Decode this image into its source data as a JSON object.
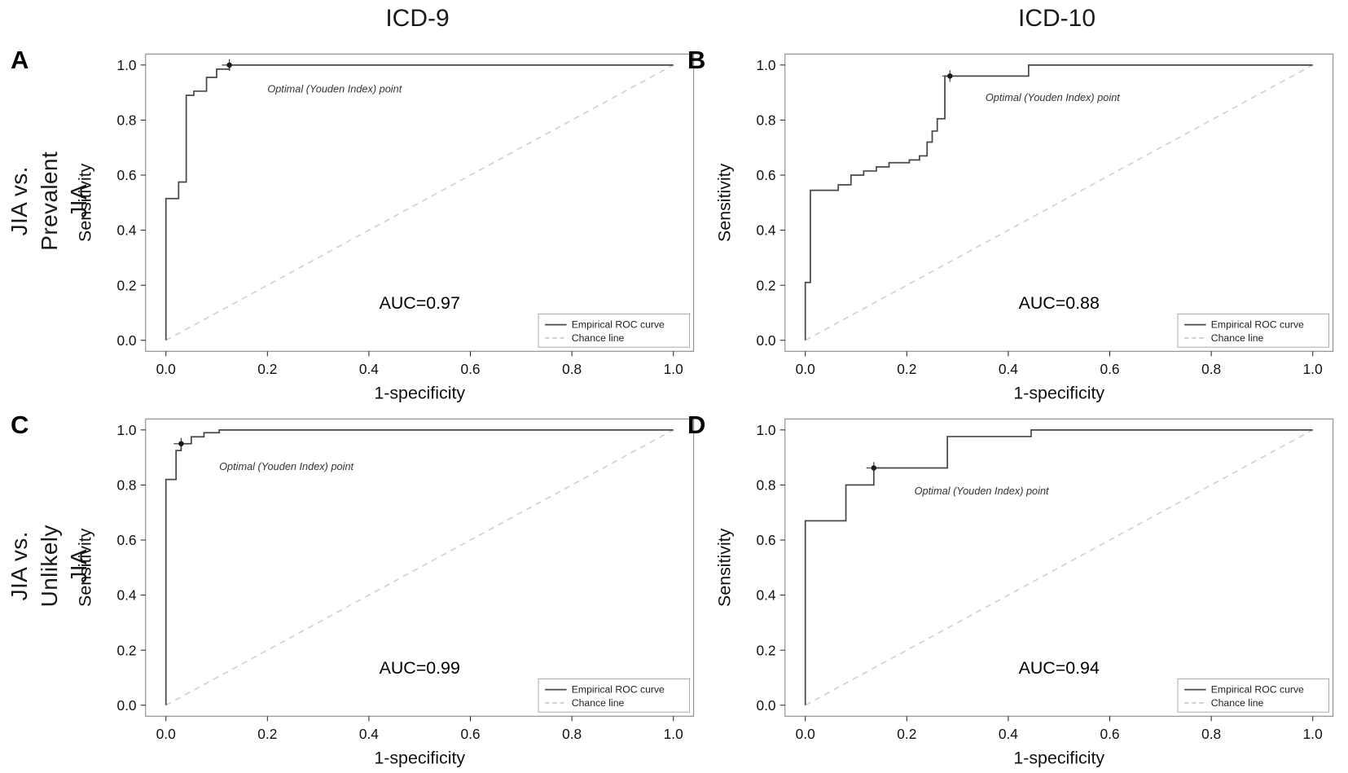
{
  "figure": {
    "columns": [
      {
        "title": "ICD-9"
      },
      {
        "title": "ICD-10"
      }
    ],
    "rows": [
      {
        "label": "Incident JIA vs.\nPrevalent JIA"
      },
      {
        "label": "Incident JIA vs.\nUnlikely JIA"
      }
    ]
  },
  "colors": {
    "roc_curve": "#44494a",
    "chance_line": "#d0d0d0",
    "plot_border": "#808080",
    "marker": "#1a1a1a"
  },
  "chart_data": [
    {
      "type": "line",
      "panel": "A",
      "group": "ICD-9",
      "comparison": "Incident JIA vs. Prevalent JIA",
      "xlabel": "1-specificity",
      "ylabel": "Sensitivity",
      "xlim": [
        0,
        1
      ],
      "ylim": [
        0,
        1
      ],
      "xticks": [
        0,
        0.2,
        0.4,
        0.6,
        0.8,
        1.0
      ],
      "yticks": [
        0,
        0.2,
        0.4,
        0.6,
        0.8,
        1.0
      ],
      "auc": 0.97,
      "auc_label": "AUC=0.97",
      "auc_pos": [
        0.5,
        0.115
      ],
      "annotation": "Optimal (Youden Index) point",
      "annotation_pos": [
        0.2,
        0.9
      ],
      "optimal_point": [
        0.125,
        1.0
      ],
      "legend": [
        "Empirical ROC curve",
        "Chance line"
      ],
      "roc_points": [
        [
          0,
          0
        ],
        [
          0,
          0.515
        ],
        [
          0.025,
          0.515
        ],
        [
          0.025,
          0.575
        ],
        [
          0.04,
          0.575
        ],
        [
          0.04,
          0.89
        ],
        [
          0.055,
          0.89
        ],
        [
          0.055,
          0.905
        ],
        [
          0.08,
          0.905
        ],
        [
          0.08,
          0.955
        ],
        [
          0.1,
          0.955
        ],
        [
          0.1,
          0.985
        ],
        [
          0.125,
          0.985
        ],
        [
          0.125,
          1.0
        ],
        [
          1,
          1
        ]
      ],
      "chance_line": [
        [
          0,
          0
        ],
        [
          1,
          1
        ]
      ]
    },
    {
      "type": "line",
      "panel": "B",
      "group": "ICD-10",
      "comparison": "Incident JIA vs. Prevalent JIA",
      "xlabel": "1-specificity",
      "ylabel": "Sensitivity",
      "xlim": [
        0,
        1
      ],
      "ylim": [
        0,
        1
      ],
      "xticks": [
        0,
        0.2,
        0.4,
        0.6,
        0.8,
        1.0
      ],
      "yticks": [
        0,
        0.2,
        0.4,
        0.6,
        0.8,
        1.0
      ],
      "auc": 0.88,
      "auc_label": "AUC=0.88",
      "auc_pos": [
        0.5,
        0.115
      ],
      "annotation": "Optimal (Youden Index) point",
      "annotation_pos": [
        0.355,
        0.87
      ],
      "optimal_point": [
        0.285,
        0.96
      ],
      "legend": [
        "Empirical ROC curve",
        "Chance line"
      ],
      "roc_points": [
        [
          0,
          0
        ],
        [
          0,
          0.21
        ],
        [
          0.01,
          0.21
        ],
        [
          0.01,
          0.545
        ],
        [
          0.065,
          0.545
        ],
        [
          0.065,
          0.565
        ],
        [
          0.09,
          0.565
        ],
        [
          0.09,
          0.6
        ],
        [
          0.115,
          0.6
        ],
        [
          0.115,
          0.615
        ],
        [
          0.14,
          0.615
        ],
        [
          0.14,
          0.63
        ],
        [
          0.165,
          0.63
        ],
        [
          0.165,
          0.645
        ],
        [
          0.205,
          0.645
        ],
        [
          0.205,
          0.655
        ],
        [
          0.225,
          0.655
        ],
        [
          0.225,
          0.67
        ],
        [
          0.24,
          0.67
        ],
        [
          0.24,
          0.72
        ],
        [
          0.25,
          0.72
        ],
        [
          0.25,
          0.76
        ],
        [
          0.26,
          0.76
        ],
        [
          0.26,
          0.805
        ],
        [
          0.275,
          0.805
        ],
        [
          0.275,
          0.96
        ],
        [
          0.285,
          0.96
        ],
        [
          0.44,
          0.96
        ],
        [
          0.44,
          1.0
        ],
        [
          1,
          1
        ]
      ],
      "chance_line": [
        [
          0,
          0
        ],
        [
          1,
          1
        ]
      ]
    },
    {
      "type": "line",
      "panel": "C",
      "group": "ICD-9",
      "comparison": "Incident JIA vs. Unlikely JIA",
      "xlabel": "1-specificity",
      "ylabel": "Sensitivity",
      "xlim": [
        0,
        1
      ],
      "ylim": [
        0,
        1
      ],
      "xticks": [
        0,
        0.2,
        0.4,
        0.6,
        0.8,
        1.0
      ],
      "yticks": [
        0,
        0.2,
        0.4,
        0.6,
        0.8,
        1.0
      ],
      "auc": 0.99,
      "auc_label": "AUC=0.99",
      "auc_pos": [
        0.5,
        0.115
      ],
      "annotation": "Optimal (Youden Index) point",
      "annotation_pos": [
        0.105,
        0.855
      ],
      "optimal_point": [
        0.03,
        0.95
      ],
      "legend": [
        "Empirical ROC curve",
        "Chance line"
      ],
      "roc_points": [
        [
          0,
          0
        ],
        [
          0,
          0.82
        ],
        [
          0.02,
          0.82
        ],
        [
          0.02,
          0.925
        ],
        [
          0.03,
          0.925
        ],
        [
          0.03,
          0.95
        ],
        [
          0.05,
          0.95
        ],
        [
          0.05,
          0.975
        ],
        [
          0.075,
          0.975
        ],
        [
          0.075,
          0.99
        ],
        [
          0.105,
          0.99
        ],
        [
          0.105,
          1.0
        ],
        [
          1,
          1
        ]
      ],
      "chance_line": [
        [
          0,
          0
        ],
        [
          1,
          1
        ]
      ]
    },
    {
      "type": "line",
      "panel": "D",
      "group": "ICD-10",
      "comparison": "Incident JIA vs. Unlikely JIA",
      "xlabel": "1-specificity",
      "ylabel": "Sensitivity",
      "xlim": [
        0,
        1
      ],
      "ylim": [
        0,
        1
      ],
      "xticks": [
        0,
        0.2,
        0.4,
        0.6,
        0.8,
        1.0
      ],
      "yticks": [
        0,
        0.2,
        0.4,
        0.6,
        0.8,
        1.0
      ],
      "auc": 0.94,
      "auc_label": "AUC=0.94",
      "auc_pos": [
        0.5,
        0.115
      ],
      "annotation": "Optimal (Youden Index) point",
      "annotation_pos": [
        0.215,
        0.765
      ],
      "optimal_point": [
        0.135,
        0.862
      ],
      "legend": [
        "Empirical ROC curve",
        "Chance line"
      ],
      "roc_points": [
        [
          0,
          0
        ],
        [
          0,
          0.67
        ],
        [
          0.08,
          0.67
        ],
        [
          0.08,
          0.8
        ],
        [
          0.135,
          0.8
        ],
        [
          0.135,
          0.862
        ],
        [
          0.28,
          0.862
        ],
        [
          0.28,
          0.976
        ],
        [
          0.445,
          0.976
        ],
        [
          0.445,
          1.0
        ],
        [
          1,
          1
        ]
      ],
      "chance_line": [
        [
          0,
          0
        ],
        [
          1,
          1
        ]
      ]
    }
  ]
}
